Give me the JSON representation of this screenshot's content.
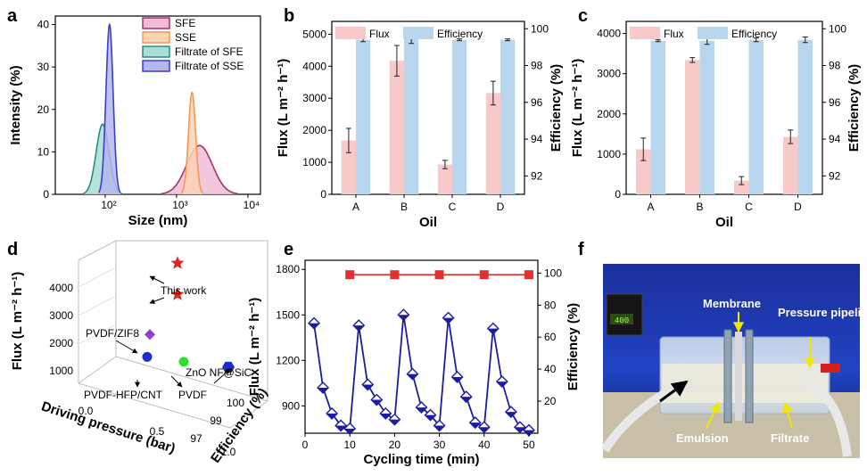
{
  "panel_letters": [
    "a",
    "b",
    "c",
    "d",
    "e",
    "f"
  ],
  "chart_data": [
    {
      "panel": "a",
      "type": "area",
      "xlabel": "Size (nm)",
      "ylabel": "Intensity (%)",
      "xscale": "log",
      "xlim": [
        20,
        15000
      ],
      "ylim": [
        0,
        42
      ],
      "xticks": [
        100,
        1000,
        10000
      ],
      "xtick_labels": [
        "10²",
        "10³",
        "10⁴"
      ],
      "yticks": [
        0,
        10,
        20,
        30,
        40
      ],
      "legend_position": "top-right",
      "series": [
        {
          "name": "SFE",
          "color": "#a3326f",
          "fill": "#f0bcd5",
          "peak_x": 2100,
          "peak_y": 11.5,
          "width": 0.18
        },
        {
          "name": "SSE",
          "color": "#f09a55",
          "fill": "#fbd3b5",
          "peak_x": 1650,
          "peak_y": 24,
          "width": 0.05
        },
        {
          "name": "Filtrate of SFE",
          "color": "#2a8c80",
          "fill": "#a9ddd6",
          "peak_x": 92,
          "peak_y": 16.5,
          "width": 0.09
        },
        {
          "name": "Filtrate of SSE",
          "color": "#3b3ec8",
          "fill": "#b4b6ee",
          "peak_x": 115,
          "peak_y": 40,
          "width": 0.05
        }
      ]
    },
    {
      "panel": "b",
      "type": "bar",
      "categories": [
        "A",
        "B",
        "C",
        "D"
      ],
      "xlabel": "Oil",
      "ylabel": "Flux (L m⁻² h⁻¹)",
      "y2label": "Efficiency (%)",
      "ylim": [
        0,
        5400
      ],
      "yticks": [
        0,
        1000,
        2000,
        3000,
        4000,
        5000
      ],
      "y2lim": [
        91,
        100.4
      ],
      "y2ticks": [
        92,
        94,
        96,
        98,
        100
      ],
      "legend": [
        "Flux",
        "Efficiency"
      ],
      "series": [
        {
          "name": "Flux",
          "axis": "left",
          "values": [
            1680,
            4170,
            930,
            3160
          ],
          "errors": [
            380,
            480,
            130,
            370
          ],
          "color": "#f7c9c9"
        },
        {
          "name": "Efficiency",
          "axis": "right",
          "values": [
            99.4,
            99.5,
            99.4,
            99.4
          ],
          "errors": [
            0.1,
            0.3,
            0.05,
            0.05
          ],
          "color": "#b8d6ee"
        }
      ]
    },
    {
      "panel": "c",
      "type": "bar",
      "categories": [
        "A",
        "B",
        "C",
        "D"
      ],
      "xlabel": "Oil",
      "ylabel": "Flux (L m⁻² h⁻¹)",
      "y2label": "Efficiency (%)",
      "ylim": [
        0,
        4300
      ],
      "yticks": [
        0,
        1000,
        2000,
        3000,
        4000
      ],
      "y2lim": [
        91,
        100.4
      ],
      "y2ticks": [
        92,
        94,
        96,
        98,
        100
      ],
      "legend": [
        "Flux",
        "Efficiency"
      ],
      "series": [
        {
          "name": "Flux",
          "axis": "left",
          "values": [
            1120,
            3340,
            340,
            1430
          ],
          "errors": [
            280,
            60,
            100,
            170
          ],
          "color": "#f7c9c9"
        },
        {
          "name": "Efficiency",
          "axis": "right",
          "values": [
            99.35,
            99.35,
            99.4,
            99.4
          ],
          "errors": [
            0.05,
            0.2,
            0.1,
            0.15
          ],
          "color": "#b8d6ee"
        }
      ]
    },
    {
      "panel": "d",
      "type": "scatter",
      "xlabel": "Driving pressure (bar)",
      "ylabel": "Flux (L m⁻² h⁻¹)",
      "zlabel": "Efficiency (%)",
      "xticks": [
        "0.0",
        "0.5",
        "1.0"
      ],
      "yticks": [
        "1000",
        "2000",
        "3000",
        "4000"
      ],
      "zticks": [
        "97",
        "99",
        "100"
      ],
      "points": [
        {
          "label": "This work",
          "pressure": 0.35,
          "flux": 4600,
          "efficiency": 99.5,
          "marker": "star",
          "color": "#d92626"
        },
        {
          "label": "This work",
          "pressure": 0.35,
          "flux": 3250,
          "efficiency": 99.5,
          "marker": "star",
          "color": "#d92626"
        },
        {
          "label": "PVDF/ZIF8",
          "pressure": 0.2,
          "flux": 1520,
          "efficiency": 99.0,
          "marker": "diamond",
          "color": "#8a3fd6"
        },
        {
          "label": "PVDF-HFP/CNT",
          "pressure": 0.25,
          "flux": 800,
          "efficiency": 98.5,
          "marker": "circle",
          "color": "#1c2fc9"
        },
        {
          "label": "PVDF",
          "pressure": 0.5,
          "flux": 800,
          "efficiency": 98.8,
          "marker": "circle",
          "color": "#2ee02e"
        },
        {
          "label": "ZnO NF@SiC",
          "pressure": 0.8,
          "flux": 800,
          "efficiency": 99.2,
          "marker": "hexagon",
          "color": "#1c2fc9"
        }
      ],
      "annotations": [
        "This work",
        "PVDF/ZIF8",
        "ZnO NF@SiC",
        "PVDF-HFP/CNT",
        "PVDF"
      ]
    },
    {
      "panel": "e",
      "type": "line",
      "xlabel": "Cycling time (min)",
      "ylabel": "Flux (L m⁻² h⁻¹)",
      "y2label": "Efficiency (%)",
      "xlim": [
        0,
        52
      ],
      "xticks": [
        0,
        10,
        20,
        30,
        40,
        50
      ],
      "ylim": [
        720,
        1860
      ],
      "yticks": [
        900,
        1200,
        1500,
        1800
      ],
      "y2lim": [
        0,
        108
      ],
      "y2ticks": [
        20,
        40,
        60,
        80,
        100
      ],
      "series": [
        {
          "name": "Flux",
          "axis": "left",
          "color": "#1c1ca0",
          "x": [
            2,
            4,
            6,
            8,
            10,
            12,
            14,
            16,
            18,
            20,
            22,
            24,
            26,
            28,
            30,
            32,
            34,
            36,
            38,
            40,
            42,
            44,
            46,
            48,
            50
          ],
          "y": [
            1445,
            1020,
            850,
            770,
            750,
            1430,
            1040,
            940,
            850,
            810,
            1500,
            1110,
            890,
            840,
            770,
            1480,
            1090,
            960,
            790,
            760,
            1410,
            1060,
            860,
            760,
            740
          ]
        },
        {
          "name": "Efficiency",
          "axis": "right",
          "color": "#e03030",
          "x": [
            10,
            20,
            30,
            40,
            50
          ],
          "y": [
            99,
            99,
            99,
            99,
            99
          ]
        }
      ]
    }
  ],
  "photo_f": {
    "labels": [
      "Membrane",
      "Pressure pipeline",
      "Emulsion",
      "Filtrate"
    ],
    "meter_reading": "400"
  }
}
